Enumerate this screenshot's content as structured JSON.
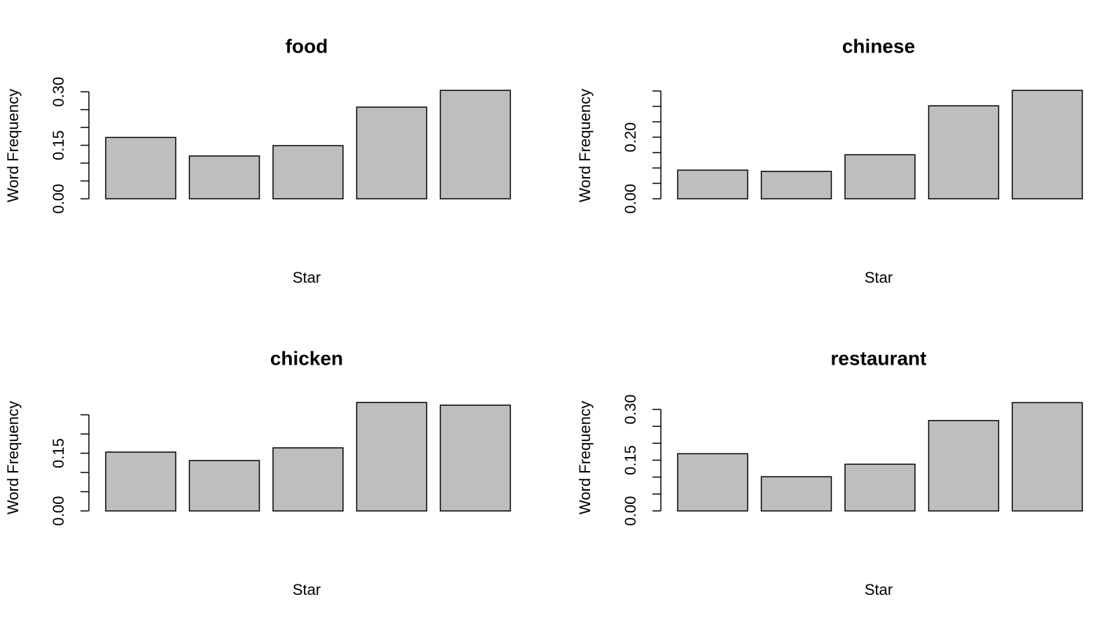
{
  "chart_data": [
    {
      "type": "bar",
      "title": "food",
      "xlabel": "Star",
      "ylabel": "Word Frequency",
      "color": "#bebebe",
      "values": [
        0.172,
        0.12,
        0.149,
        0.257,
        0.304
      ],
      "ylim": [
        0,
        0.316
      ],
      "yticks": [
        {
          "value": 0,
          "label": "0.00"
        },
        0.15,
        {
          "value": 0.3,
          "label": "0.30"
        }
      ],
      "yminorticks": [
        0.05,
        0.1,
        0.2,
        0.25
      ]
    },
    {
      "type": "bar",
      "title": "chinese",
      "xlabel": "Star",
      "ylabel": "Word Frequency",
      "color": "#bebebe",
      "values": [
        0.093,
        0.089,
        0.143,
        0.302,
        0.352
      ],
      "ylim": [
        0,
        0.366
      ],
      "yticks": [
        {
          "value": 0,
          "label": "0.00"
        },
        {
          "value": 0.2,
          "label": "0.20"
        }
      ],
      "yminorticks": [
        0.05,
        0.1,
        0.15,
        0.25,
        0.3,
        0.35
      ]
    },
    {
      "type": "bar",
      "title": "chicken",
      "xlabel": "Star",
      "ylabel": "Word Frequency",
      "color": "#bebebe",
      "values": [
        0.153,
        0.131,
        0.164,
        0.282,
        0.275
      ],
      "ylim": [
        0,
        0.293
      ],
      "yticks": [
        {
          "value": 0,
          "label": "0.00"
        },
        0.15
      ],
      "yminorticks": [
        0.05,
        0.1,
        0.2,
        0.25
      ]
    },
    {
      "type": "bar",
      "title": "restaurant",
      "xlabel": "Star",
      "ylabel": "Word Frequency",
      "color": "#bebebe",
      "values": [
        0.169,
        0.101,
        0.138,
        0.267,
        0.32
      ],
      "ylim": [
        0,
        0.333
      ],
      "yticks": [
        {
          "value": 0,
          "label": "0.00"
        },
        0.15,
        {
          "value": 0.3,
          "label": "0.30"
        }
      ],
      "yminorticks": [
        0.05,
        0.1,
        0.2,
        0.25
      ]
    }
  ]
}
